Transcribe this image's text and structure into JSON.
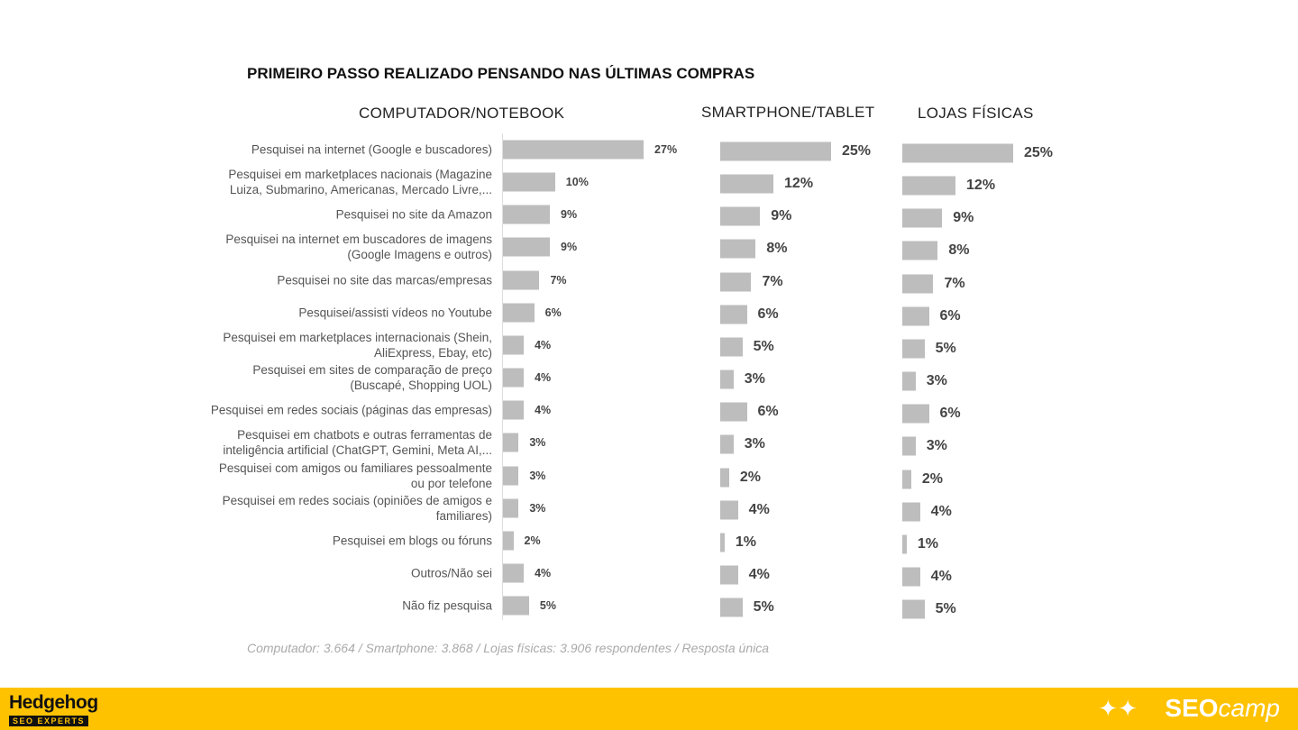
{
  "chart_data": {
    "type": "bar",
    "title": "PRIMEIRO PASSO REALIZADO PENSANDO NAS ÚLTIMAS COMPRAS",
    "categories": [
      "Pesquisei na internet (Google e buscadores)",
      "Pesquisei em marketplaces nacionais (Magazine Luiza, Submarino, Americanas, Mercado Livre,...",
      "Pesquisei no site da Amazon",
      "Pesquisei na internet em buscadores de imagens (Google Imagens e outros)",
      "Pesquisei no site das marcas/empresas",
      "Pesquisei/assisti vídeos no Youtube",
      "Pesquisei em marketplaces internacionais (Shein, AliExpress, Ebay, etc)",
      "Pesquisei em sites de comparação de preço (Buscapé, Shopping UOL)",
      "Pesquisei em redes sociais (páginas das empresas)",
      "Pesquisei em chatbots e outras ferramentas de inteligência artificial (ChatGPT, Gemini, Meta AI,...",
      "Pesquisei com amigos ou familiares pessoalmente ou por telefone",
      "Pesquisei em redes sociais (opiniões de amigos e familiares)",
      "Pesquisei em blogs ou fóruns",
      "Outros/Não sei",
      "Não fiz pesquisa"
    ],
    "series": [
      {
        "name": "COMPUTADOR/NOTEBOOK",
        "values": [
          27,
          10,
          9,
          9,
          7,
          6,
          4,
          4,
          4,
          3,
          3,
          3,
          2,
          4,
          5
        ]
      },
      {
        "name": "SMARTPHONE/TABLET",
        "values": [
          25,
          12,
          9,
          8,
          7,
          6,
          5,
          3,
          6,
          3,
          2,
          4,
          1,
          4,
          5
        ]
      },
      {
        "name": "LOJAS FÍSICAS",
        "values": [
          25,
          12,
          9,
          8,
          7,
          6,
          5,
          3,
          6,
          3,
          2,
          4,
          1,
          4,
          5
        ]
      }
    ],
    "unit": "%",
    "bar_color": "#bdbdbd",
    "note": "Computador: 3.664 / Smartphone: 3.868 / Lojas físicas: 3.906 respondentes / Resposta única"
  },
  "footer": {
    "left_logo": "Hedgehog",
    "left_logo_sub": "SEO EXPERTS",
    "right_logo_bold": "SEO",
    "right_logo_light": "camp",
    "accent": "#ffc200"
  }
}
